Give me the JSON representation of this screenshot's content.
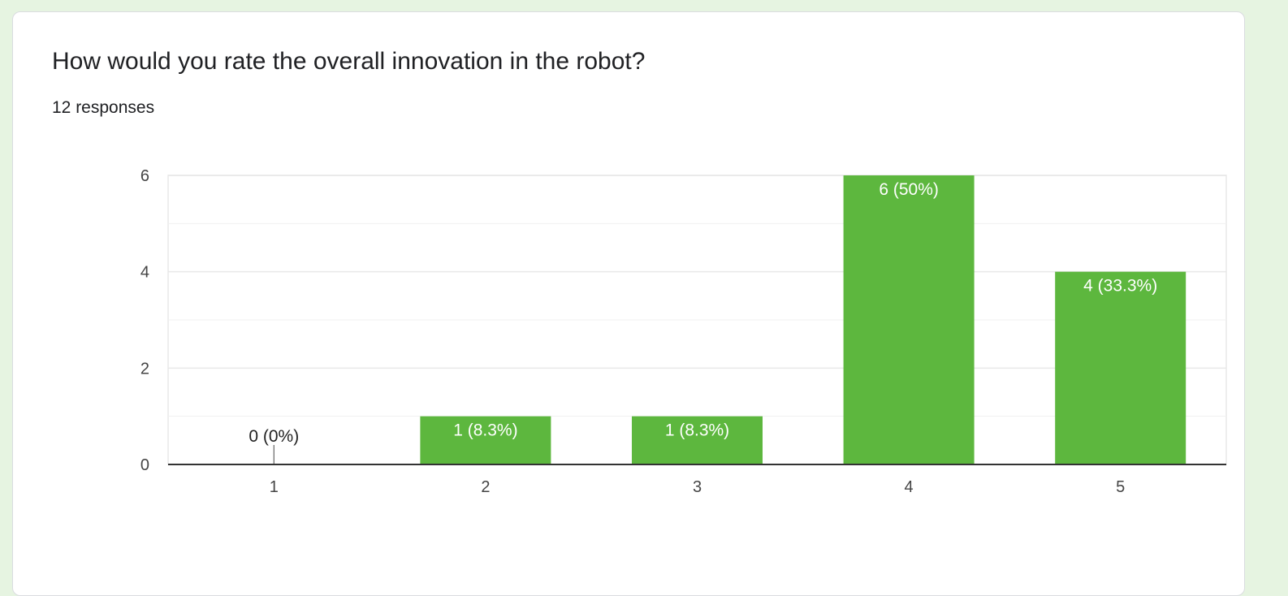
{
  "card": {
    "question": "How would you rate the overall innovation in the robot?",
    "responses": "12 responses"
  },
  "colors": {
    "bar": "#5db73e",
    "background": "#e6f4e1",
    "label_on_bar": "#ffffff",
    "label_outside": "#222222",
    "grid": "#e8e8e8",
    "axis": "#333333"
  },
  "chart_data": {
    "type": "bar",
    "categories": [
      "1",
      "2",
      "3",
      "4",
      "5"
    ],
    "values": [
      0,
      1,
      1,
      6,
      4
    ],
    "data_labels": [
      "0 (0%)",
      "1 (8.3%)",
      "1 (8.3%)",
      "6 (50%)",
      "4 (33.3%)"
    ],
    "yticks": [
      "0",
      "2",
      "4",
      "6"
    ],
    "ylim": [
      0,
      6
    ],
    "minor_gridlines": [
      1,
      3,
      5
    ],
    "grid": true,
    "legend": "none",
    "title": "",
    "xlabel": "",
    "ylabel": ""
  }
}
